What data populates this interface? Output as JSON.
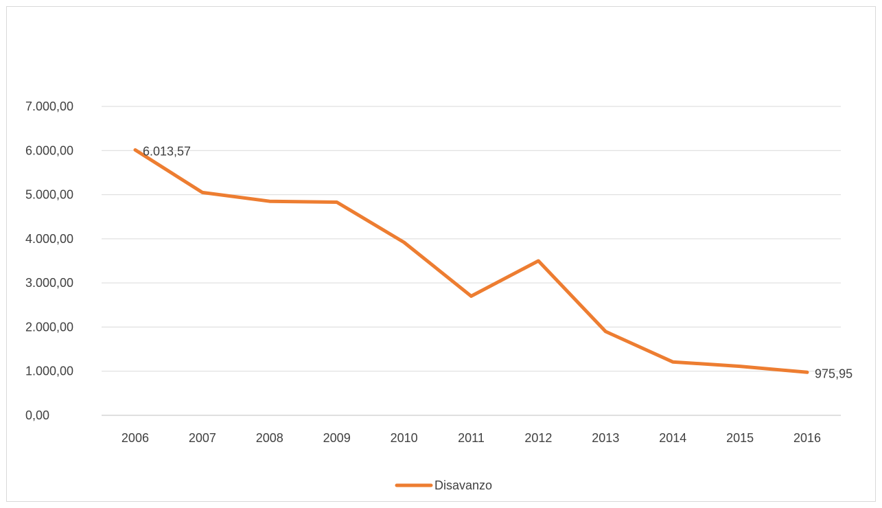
{
  "chart_data": {
    "type": "line",
    "title": "",
    "xlabel": "",
    "ylabel": "",
    "categories": [
      "2006",
      "2007",
      "2008",
      "2009",
      "2010",
      "2011",
      "2012",
      "2013",
      "2014",
      "2015",
      "2016"
    ],
    "series": [
      {
        "name": "Disavanzo",
        "color": "#ed7d31",
        "values": [
          6013.57,
          5050,
          4850,
          4830,
          3920,
          2700,
          3500,
          1900,
          1210,
          1110,
          975.95
        ]
      }
    ],
    "ylim": [
      0,
      7000
    ],
    "yticks": [
      0,
      1000,
      2000,
      3000,
      4000,
      5000,
      6000,
      7000
    ],
    "ytick_labels": [
      "0,00",
      "1.000,00",
      "2.000,00",
      "3.000,00",
      "4.000,00",
      "5.000,00",
      "6.000,00",
      "7.000,00"
    ],
    "data_labels": [
      {
        "category": "2006",
        "text": "6.013,57"
      },
      {
        "category": "2016",
        "text": "975,95"
      }
    ],
    "grid": true,
    "legend": {
      "position": "bottom",
      "entries": [
        "Disavanzo"
      ]
    },
    "colors": {
      "gridline": "#d9d9d9",
      "axis": "#bfbfbf",
      "text": "#404040"
    }
  }
}
